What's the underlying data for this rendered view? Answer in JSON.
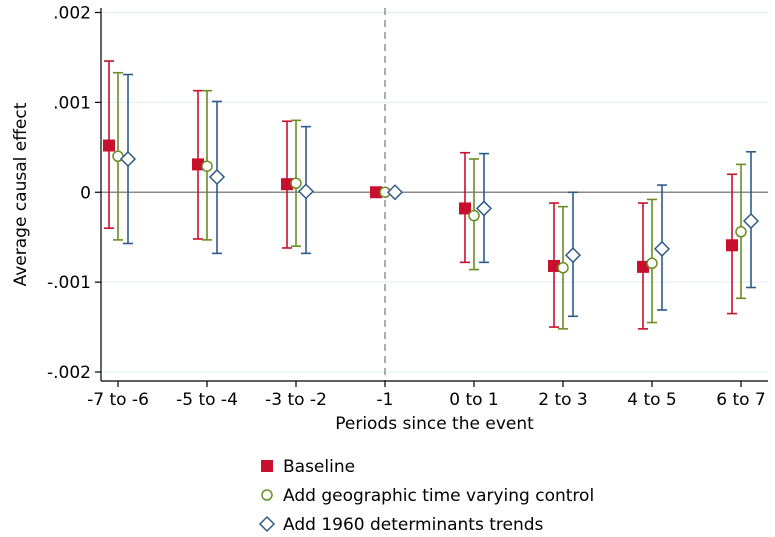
{
  "chart_data": {
    "type": "scatter",
    "title": "",
    "xlabel": "Periods since the event",
    "ylabel": "Average causal effect",
    "categories": [
      "-7 to -6",
      "-5 to -4",
      "-3 to -2",
      "-1",
      "0 to 1",
      "2 to 3",
      "4 to 5",
      "6 to 7"
    ],
    "yticks": [
      0.002,
      0.001,
      0,
      -0.001,
      -0.002
    ],
    "ytick_labels": [
      ".002",
      ".001",
      "0",
      "-.001",
      "-.002"
    ],
    "ylim": [
      -0.0021,
      0.00205
    ],
    "reference_x": "-1",
    "reference_y": 0,
    "grid": true,
    "legend_position": "bottom",
    "series": [
      {
        "name": "Baseline",
        "marker": "square",
        "color": "#c8102e",
        "values": [
          0.00052,
          0.00031,
          9e-05,
          0.0,
          -0.00018,
          -0.00082,
          -0.00083,
          -0.00059
        ],
        "ci_low": [
          -0.0004,
          -0.00052,
          -0.00062,
          0.0,
          -0.00078,
          -0.0015,
          -0.00152,
          -0.00135
        ],
        "ci_high": [
          0.00146,
          0.00113,
          0.00079,
          0.0,
          0.00044,
          -0.00012,
          -0.00012,
          0.0002
        ]
      },
      {
        "name": "Add geographic time varying control",
        "marker": "circle",
        "color": "#6b8e23",
        "values": [
          0.0004,
          0.00029,
          0.0001,
          0.0,
          -0.00026,
          -0.00084,
          -0.00079,
          -0.00044
        ],
        "ci_low": [
          -0.00053,
          -0.00053,
          -0.0006,
          0.0,
          -0.00086,
          -0.00152,
          -0.00145,
          -0.00118
        ],
        "ci_high": [
          0.00133,
          0.00113,
          0.0008,
          0.0,
          0.00037,
          -0.00016,
          -8e-05,
          0.00031
        ]
      },
      {
        "name": "Add 1960 determinants trends",
        "marker": "diamond",
        "color": "#2f5b8a",
        "values": [
          0.00037,
          0.00017,
          1e-05,
          0.0,
          -0.00018,
          -0.0007,
          -0.00063,
          -0.00032
        ],
        "ci_low": [
          -0.00057,
          -0.00068,
          -0.00068,
          0.0,
          -0.00078,
          -0.00138,
          -0.00131,
          -0.00106
        ],
        "ci_high": [
          0.00131,
          0.00101,
          0.00073,
          0.0,
          0.00043,
          0.0,
          8e-05,
          0.00045
        ]
      }
    ]
  }
}
